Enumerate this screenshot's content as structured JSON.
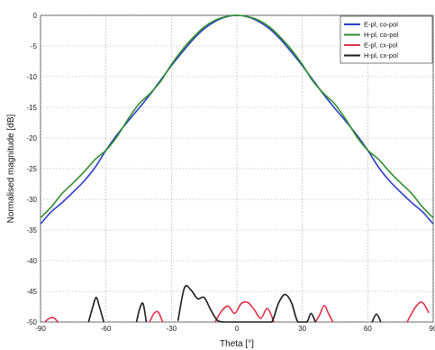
{
  "chart_data": {
    "type": "line",
    "xlabel": "Theta [°]",
    "ylabel": "Normalised magnitude [dB]",
    "xlim": [
      -90,
      90
    ],
    "ylim": [
      -50,
      0
    ],
    "xticks": [
      "-90",
      "-60",
      "-30",
      "0",
      "30",
      "60",
      "90"
    ],
    "yticks": [
      "0",
      "-5",
      "-10",
      "-15",
      "-20",
      "-25",
      "-30",
      "-35",
      "-40",
      "-45",
      "-50"
    ],
    "grid": true,
    "legend_position": "top-right",
    "series": [
      {
        "name": "E-pl, co-pol",
        "color": "#2b3fbf",
        "x": [
          -90,
          -85,
          -80,
          -75,
          -70,
          -65,
          -60,
          -55,
          -50,
          -45,
          -40,
          -35,
          -30,
          -25,
          -20,
          -15,
          -10,
          -5,
          0,
          5,
          10,
          15,
          20,
          25,
          30,
          35,
          40,
          45,
          50,
          55,
          60,
          65,
          70,
          75,
          80,
          85,
          90
        ],
        "y": [
          -34,
          -32,
          -30.5,
          -28.8,
          -27,
          -24.8,
          -22,
          -19.5,
          -17.3,
          -15.2,
          -13,
          -10.6,
          -8.2,
          -6,
          -3.9,
          -2.2,
          -1,
          -0.25,
          0,
          -0.25,
          -1,
          -2.2,
          -3.9,
          -6,
          -8.2,
          -10.6,
          -13,
          -15.2,
          -17.3,
          -19.5,
          -22,
          -24.8,
          -27,
          -28.8,
          -30.5,
          -32,
          -34
        ]
      },
      {
        "name": "H-pl, co-pol",
        "color": "#2f8f2f",
        "x": [
          -90,
          -85,
          -80,
          -75,
          -70,
          -65,
          -60,
          -55,
          -50,
          -45,
          -40,
          -35,
          -30,
          -25,
          -20,
          -15,
          -10,
          -5,
          0,
          5,
          10,
          15,
          20,
          25,
          30,
          35,
          40,
          45,
          50,
          55,
          60,
          65,
          70,
          75,
          80,
          85,
          90
        ],
        "y": [
          -33,
          -31.2,
          -29,
          -27.3,
          -25.5,
          -23.5,
          -22,
          -19.8,
          -17,
          -14.5,
          -12.8,
          -10.8,
          -8,
          -5.6,
          -3.6,
          -1.9,
          -0.8,
          -0.2,
          0,
          -0.2,
          -0.8,
          -1.9,
          -3.6,
          -5.6,
          -8,
          -10.8,
          -12.8,
          -14.5,
          -17,
          -19.8,
          -22,
          -23.5,
          -25.5,
          -27.3,
          -29,
          -31.2,
          -33
        ]
      },
      {
        "name": "E-pl, cx-pol",
        "color": "#e0304a",
        "x": [
          -88,
          -86,
          -84,
          -82,
          -40,
          -38,
          -36,
          -34,
          -10,
          -7,
          -4,
          -1,
          2,
          5,
          8,
          11,
          14,
          17,
          36,
          38,
          40,
          42,
          44,
          78,
          82,
          85,
          88
        ],
        "y": [
          -50,
          -49.4,
          -49.3,
          -50,
          -50,
          -48.6,
          -48.4,
          -50,
          -50,
          -48.2,
          -47.4,
          -48.6,
          -47,
          -46.8,
          -48,
          -49.4,
          -47.8,
          -50,
          -50,
          -48.8,
          -47.3,
          -48.6,
          -50,
          -50,
          -47.5,
          -46.8,
          -48.5
        ]
      },
      {
        "name": "H-pl, cx-pol",
        "color": "#1a1a1a",
        "x": [
          -68,
          -66,
          -64.5,
          -63,
          -61,
          -46,
          -44.5,
          -43,
          -41.5,
          -27,
          -24,
          -21,
          -18,
          -15,
          -12,
          -9,
          -6,
          -3,
          0,
          4,
          8,
          12,
          16,
          19,
          22,
          25,
          28,
          32,
          34,
          36,
          62,
          64,
          66
        ],
        "y": [
          -50,
          -47.5,
          -46,
          -47.5,
          -50,
          -50,
          -47.8,
          -47,
          -50,
          -49.8,
          -44.4,
          -44.8,
          -46.2,
          -46,
          -48,
          -49.7,
          -50,
          -50,
          -50,
          -50,
          -50,
          -50,
          -50,
          -47,
          -45.5,
          -46.8,
          -50,
          -50,
          -48.6,
          -50,
          -50,
          -48.7,
          -50
        ]
      }
    ]
  }
}
